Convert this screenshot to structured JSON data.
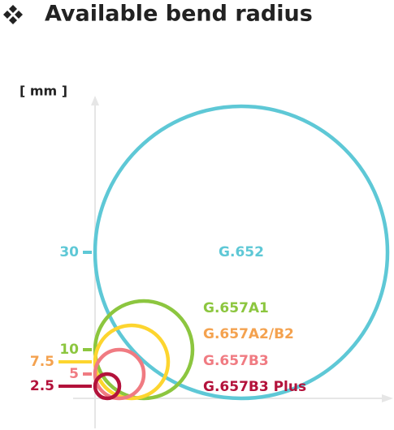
{
  "chart_data": {
    "type": "circle",
    "title": "Available bend radius",
    "y_label": "[ mm ]",
    "ylim": [
      0,
      62
    ],
    "series": [
      {
        "name": "G.652",
        "color": "#5ec8d6",
        "label_color": "#5ec8d6",
        "values": [
          30
        ]
      },
      {
        "name": "G.657A1",
        "color": "#8cc63f",
        "label_color": "#8cc63f",
        "values": [
          10
        ]
      },
      {
        "name": "G.657A2/B2",
        "color": "#fdd52f",
        "label_color": "#f4a24f",
        "values": [
          7.5
        ]
      },
      {
        "name": "G.657B3",
        "color": "#f07b82",
        "label_color": "#f07b82",
        "values": [
          5
        ]
      },
      {
        "name": "G.657B3 Plus",
        "color": "#b3123b",
        "label_color": "#b3123b",
        "values": [
          2.5
        ]
      }
    ]
  }
}
